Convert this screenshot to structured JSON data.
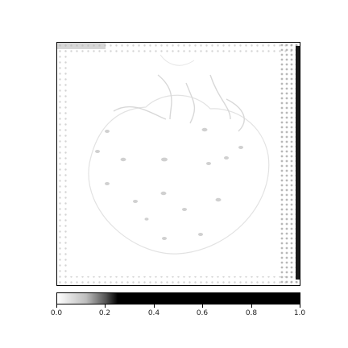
{
  "image": {
    "kind": "saliency-map",
    "background_color": "#ffffff",
    "colormap": [
      "#ffffff",
      "#000000"
    ]
  },
  "colorbar": {
    "ticks": [
      "0.0",
      "0.2",
      "0.4",
      "0.6",
      "0.8",
      "1.0"
    ],
    "range": [
      0.0,
      1.0
    ]
  }
}
